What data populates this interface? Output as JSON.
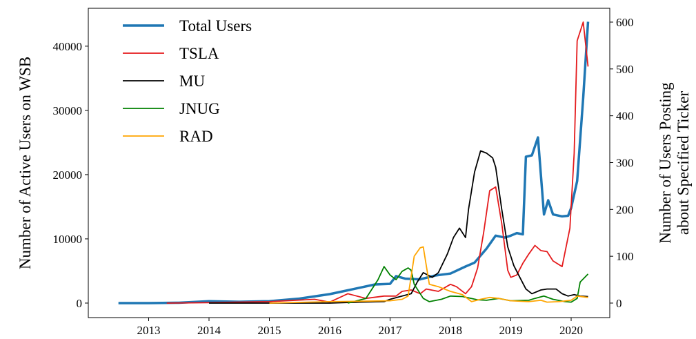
{
  "chart_data": {
    "type": "line",
    "ylabel": "Number of Active Users on WSB",
    "y2label": [
      "Number of Users Posting",
      "about Specified Ticker"
    ],
    "xlim": [
      2012.0,
      2020.64
    ],
    "xticks": [
      2013,
      2014,
      2015,
      2016,
      2017,
      2018,
      2019,
      2020
    ],
    "ylim": [
      -2260,
      45900
    ],
    "yticks": [
      0,
      10000,
      20000,
      30000,
      40000
    ],
    "y2lim": [
      -31,
      629.5
    ],
    "y2ticks": [
      0,
      100,
      200,
      300,
      400,
      500,
      600
    ],
    "legend": "upper left",
    "series": [
      {
        "name": "Total Users",
        "color": "#1f77b4",
        "axis": "y",
        "x": [
          2012.5,
          2013,
          2013.5,
          2014,
          2014.5,
          2015,
          2015.5,
          2016,
          2016.5,
          2016.75,
          2017,
          2017.1,
          2017.25,
          2017.5,
          2017.75,
          2018,
          2018.25,
          2018.4,
          2018.6,
          2018.75,
          2018.9,
          2019.0,
          2019.1,
          2019.2,
          2019.25,
          2019.35,
          2019.45,
          2019.55,
          2019.62,
          2019.7,
          2019.85,
          2019.95,
          2020.0,
          2020.1,
          2020.2,
          2020.28
        ],
        "values": [
          0,
          0,
          50,
          300,
          200,
          300,
          700,
          1400,
          2400,
          2900,
          3000,
          4200,
          3800,
          3700,
          4300,
          4600,
          5700,
          6300,
          8500,
          10500,
          10200,
          10500,
          10900,
          10700,
          22800,
          23000,
          25800,
          13800,
          16000,
          13800,
          13500,
          13600,
          14800,
          19000,
          32000,
          43800
        ]
      },
      {
        "name": "TSLA",
        "color": "#e41a1c",
        "axis": "y2",
        "x": [
          2013.3,
          2014,
          2015,
          2015.75,
          2016,
          2016.3,
          2016.6,
          2016.9,
          2017.1,
          2017.2,
          2017.35,
          2017.5,
          2017.6,
          2017.8,
          2018,
          2018.1,
          2018.25,
          2018.35,
          2018.45,
          2018.55,
          2018.65,
          2018.75,
          2018.85,
          2018.95,
          2019.0,
          2019.1,
          2019.2,
          2019.3,
          2019.4,
          2019.5,
          2019.6,
          2019.7,
          2019.85,
          2019.98,
          2020.05,
          2020.1,
          2020.2,
          2020.28
        ],
        "values": [
          0,
          1,
          3,
          8,
          2,
          20,
          10,
          15,
          15,
          25,
          28,
          20,
          30,
          25,
          40,
          35,
          20,
          35,
          75,
          150,
          240,
          248,
          170,
          70,
          55,
          60,
          85,
          105,
          123,
          112,
          110,
          90,
          78,
          160,
          320,
          560,
          600,
          505
        ]
      },
      {
        "name": "MU",
        "color": "#000000",
        "axis": "y2",
        "x": [
          2014,
          2015,
          2016,
          2016.5,
          2016.9,
          2017.0,
          2017.2,
          2017.35,
          2017.45,
          2017.55,
          2017.7,
          2017.8,
          2017.95,
          2018.05,
          2018.15,
          2018.25,
          2018.3,
          2018.4,
          2018.5,
          2018.6,
          2018.7,
          2018.75,
          2018.85,
          2018.95,
          2019.05,
          2019.15,
          2019.25,
          2019.35,
          2019.5,
          2019.6,
          2019.75,
          2019.85,
          2019.95,
          2020.05,
          2020.15,
          2020.28
        ],
        "values": [
          0,
          0,
          0,
          2,
          3,
          8,
          15,
          20,
          45,
          65,
          55,
          65,
          105,
          140,
          160,
          140,
          200,
          280,
          325,
          320,
          310,
          290,
          200,
          120,
          80,
          55,
          30,
          20,
          28,
          30,
          30,
          20,
          15,
          18,
          15,
          14
        ]
      },
      {
        "name": "JNUG",
        "color": "#008000",
        "axis": "y2",
        "x": [
          2016.3,
          2016.6,
          2016.8,
          2016.9,
          2017.0,
          2017.1,
          2017.2,
          2017.3,
          2017.35,
          2017.4,
          2017.55,
          2017.65,
          2017.85,
          2018,
          2018.2,
          2018.45,
          2018.6,
          2018.8,
          2019.0,
          2019.3,
          2019.4,
          2019.55,
          2019.7,
          2019.9,
          2020.0,
          2020.1,
          2020.15,
          2020.28
        ],
        "values": [
          0,
          10,
          50,
          78,
          60,
          50,
          68,
          75,
          70,
          40,
          10,
          3,
          8,
          15,
          14,
          7,
          6,
          10,
          5,
          6,
          10,
          15,
          8,
          3,
          2,
          10,
          45,
          62
        ]
      },
      {
        "name": "RAD",
        "color": "#ffa500",
        "axis": "y2",
        "x": [
          2015,
          2016,
          2016.5,
          2017,
          2017.2,
          2017.3,
          2017.4,
          2017.5,
          2017.55,
          2017.65,
          2017.8,
          2018.0,
          2018.2,
          2018.35,
          2018.5,
          2018.65,
          2018.8,
          2019.0,
          2019.3,
          2019.5,
          2019.6,
          2019.8,
          2020.0,
          2020.1,
          2020.28
        ],
        "values": [
          0,
          3,
          4,
          5,
          8,
          15,
          100,
          118,
          120,
          40,
          35,
          25,
          18,
          3,
          8,
          12,
          10,
          5,
          3,
          6,
          2,
          3,
          6,
          15,
          12
        ]
      }
    ]
  }
}
